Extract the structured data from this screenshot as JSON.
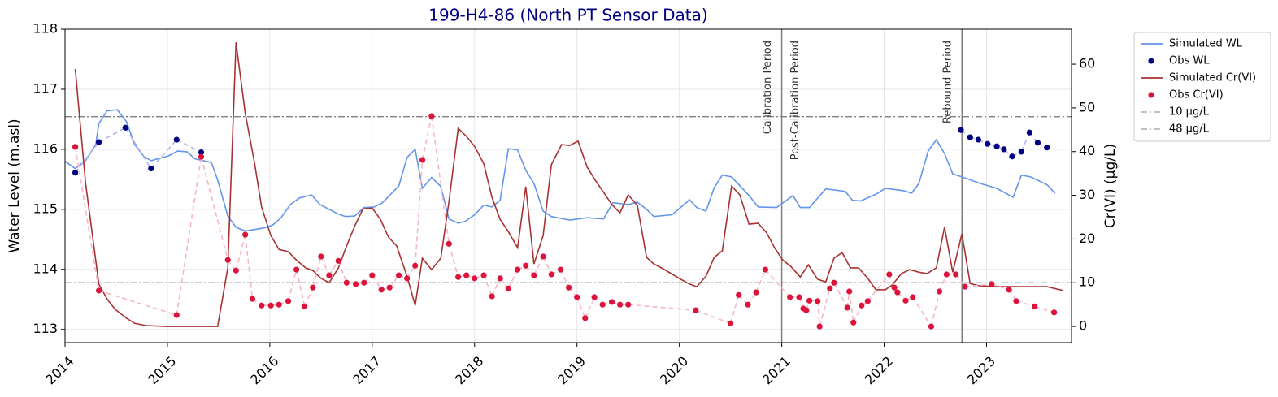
{
  "chart_data": {
    "type": "dual-axis",
    "title": "199-H4-86 (North PT Sensor Data)",
    "y_label": "Water Level (m.asl)",
    "y2_label": "Cr(VI) (µg/L)",
    "xlim": [
      2014,
      2023.83
    ],
    "xticks": [
      2014,
      2015,
      2016,
      2017,
      2018,
      2019,
      2020,
      2021,
      2022,
      2023
    ],
    "ylim": [
      112.78,
      118
    ],
    "yticks": [
      113,
      114,
      115,
      116,
      117,
      118
    ],
    "y2lim": [
      -3.7,
      68
    ],
    "y2ticks": [
      0,
      10,
      20,
      30,
      40,
      50,
      60
    ],
    "grid": true,
    "legend": "outside-right",
    "series": [
      {
        "name": "Simulated WL",
        "type": "line",
        "axis": "y",
        "color": "#6495ed",
        "x": [
          2014.0,
          2014.1,
          2014.2,
          2014.3,
          2014.33,
          2014.41,
          2014.51,
          2014.6,
          2014.68,
          2014.77,
          2014.84,
          2015.01,
          2015.1,
          2015.19,
          2015.27,
          2015.43,
          2015.49,
          2015.59,
          2015.67,
          2015.76,
          2015.94,
          2016.03,
          2016.11,
          2016.2,
          2016.29,
          2016.41,
          2016.49,
          2016.67,
          2016.74,
          2016.83,
          2016.92,
          2017.02,
          2017.1,
          2017.26,
          2017.34,
          2017.42,
          2017.49,
          2017.58,
          2017.67,
          2017.75,
          2017.84,
          2017.91,
          2018.0,
          2018.09,
          2018.17,
          2018.25,
          2018.33,
          2018.42,
          2018.5,
          2018.58,
          2018.67,
          2018.75,
          2018.93,
          2019.1,
          2019.26,
          2019.35,
          2019.5,
          2019.59,
          2019.68,
          2019.75,
          2019.93,
          2020.1,
          2020.17,
          2020.26,
          2020.34,
          2020.42,
          2020.51,
          2020.68,
          2020.77,
          2020.95,
          2021.11,
          2021.18,
          2021.27,
          2021.43,
          2021.62,
          2021.69,
          2021.77,
          2021.93,
          2022.01,
          2022.19,
          2022.27,
          2022.34,
          2022.43,
          2022.51,
          2022.59,
          2022.67,
          2022.76,
          2022.94,
          2023.1,
          2023.26,
          2023.34,
          2023.43,
          2023.59,
          2023.67
        ],
        "values": [
          115.8,
          115.68,
          115.81,
          116.08,
          116.43,
          116.64,
          116.66,
          116.46,
          116.08,
          115.88,
          115.81,
          115.89,
          115.97,
          115.96,
          115.84,
          115.78,
          115.49,
          114.89,
          114.7,
          114.64,
          114.69,
          114.74,
          114.86,
          115.08,
          115.19,
          115.24,
          115.08,
          114.92,
          114.88,
          114.89,
          115.03,
          115.04,
          115.11,
          115.39,
          115.86,
          116.0,
          115.35,
          115.53,
          115.38,
          114.84,
          114.77,
          114.8,
          114.91,
          115.07,
          115.04,
          115.15,
          116.01,
          115.99,
          115.65,
          115.43,
          114.97,
          114.88,
          114.82,
          114.86,
          114.84,
          115.11,
          115.08,
          115.12,
          115.0,
          114.88,
          114.91,
          115.16,
          115.03,
          114.97,
          115.36,
          115.57,
          115.54,
          115.23,
          115.04,
          115.03,
          115.23,
          115.03,
          115.03,
          115.34,
          115.3,
          115.15,
          115.14,
          115.26,
          115.35,
          115.31,
          115.27,
          115.43,
          115.97,
          116.16,
          115.93,
          115.59,
          115.54,
          115.43,
          115.35,
          115.2,
          115.57,
          115.54,
          115.41,
          115.27
        ]
      },
      {
        "name": "Obs WL",
        "type": "scatter",
        "axis": "y",
        "color": "#000080",
        "connector": "#b4b4e6",
        "x": [
          2014.1,
          2014.33,
          2014.59,
          2014.84,
          2015.09,
          2015.33,
          2022.75,
          2022.84,
          2022.92,
          2023.01,
          2023.1,
          2023.17,
          2023.25,
          2023.34,
          2023.42,
          2023.5,
          2023.59
        ],
        "values": [
          115.61,
          116.12,
          116.36,
          115.68,
          116.16,
          115.95,
          116.32,
          116.2,
          116.16,
          116.09,
          116.05,
          116.0,
          115.88,
          115.96,
          116.28,
          116.11,
          116.03
        ]
      },
      {
        "name": "Simulated Cr(VI)",
        "type": "line",
        "axis": "y2",
        "color": "#a83232",
        "x": [
          2014.1,
          2014.2,
          2014.33,
          2014.41,
          2014.49,
          2014.6,
          2014.68,
          2014.79,
          2014.99,
          2015.49,
          2015.59,
          2015.67,
          2015.76,
          2015.85,
          2015.92,
          2016.01,
          2016.09,
          2016.18,
          2016.26,
          2016.35,
          2016.42,
          2016.5,
          2016.58,
          2016.67,
          2016.75,
          2016.83,
          2016.91,
          2017.0,
          2017.08,
          2017.16,
          2017.24,
          2017.34,
          2017.42,
          2017.49,
          2017.58,
          2017.67,
          2017.75,
          2017.84,
          2017.92,
          2018.0,
          2018.09,
          2018.17,
          2018.25,
          2018.33,
          2018.42,
          2018.5,
          2018.58,
          2018.67,
          2018.75,
          2018.85,
          2018.93,
          2019.01,
          2019.1,
          2019.18,
          2019.26,
          2019.34,
          2019.42,
          2019.5,
          2019.59,
          2019.68,
          2019.75,
          2019.84,
          2020.0,
          2020.1,
          2020.17,
          2020.26,
          2020.34,
          2020.42,
          2020.51,
          2020.59,
          2020.68,
          2020.77,
          2020.85,
          2020.93,
          2021.01,
          2021.09,
          2021.18,
          2021.26,
          2021.35,
          2021.43,
          2021.51,
          2021.59,
          2021.67,
          2021.75,
          2021.84,
          2021.92,
          2022.01,
          2022.08,
          2022.17,
          2022.25,
          2022.34,
          2022.42,
          2022.51,
          2022.59,
          2022.67,
          2022.76,
          2022.84,
          2022.93,
          2023.1,
          2023.34,
          2023.43,
          2023.59,
          2023.75
        ],
        "values": [
          58.9,
          32.9,
          9.7,
          6.3,
          3.9,
          1.9,
          0.7,
          0.2,
          0,
          0,
          13.4,
          65.0,
          48.7,
          37.5,
          27.3,
          20.8,
          17.6,
          17.1,
          15.2,
          13.4,
          12.8,
          11.0,
          10.0,
          13.4,
          18.4,
          23.0,
          26.9,
          27.1,
          24.5,
          20.4,
          18.4,
          11.5,
          4.8,
          15.6,
          13.0,
          15.6,
          28.6,
          45.3,
          43.5,
          41.2,
          37.2,
          29.5,
          24.5,
          21.7,
          18.0,
          32.0,
          14.3,
          20.8,
          37.0,
          41.6,
          41.4,
          42.4,
          36.4,
          33.4,
          30.7,
          27.9,
          26.0,
          30.1,
          27.7,
          15.8,
          14.3,
          13.2,
          11.0,
          9.7,
          9.1,
          11.5,
          15.8,
          17.3,
          32.1,
          30.1,
          23.4,
          23.6,
          21.5,
          18.0,
          15.2,
          13.7,
          11.3,
          14.1,
          10.8,
          10.2,
          15.6,
          16.9,
          13.4,
          13.4,
          11.0,
          8.4,
          8.4,
          9.5,
          12.1,
          13.0,
          12.4,
          12.1,
          13.4,
          22.7,
          12.4,
          21.2,
          9.8,
          9.3,
          9.1,
          9.1,
          9.1,
          9.1,
          8.2
        ]
      },
      {
        "name": "Obs Cr(VI)",
        "type": "scatter",
        "axis": "y2",
        "color": "#dc143c",
        "connector": "#f7b6c6",
        "x": [
          2014.1,
          2014.33,
          2015.09,
          2015.33,
          2015.59,
          2015.67,
          2015.76,
          2015.83,
          2015.92,
          2016.01,
          2016.09,
          2016.18,
          2016.26,
          2016.34,
          2016.42,
          2016.5,
          2016.58,
          2016.67,
          2016.75,
          2016.84,
          2016.92,
          2017.0,
          2017.09,
          2017.17,
          2017.26,
          2017.34,
          2017.42,
          2017.49,
          2017.58,
          2017.75,
          2017.84,
          2017.92,
          2018.0,
          2018.09,
          2018.17,
          2018.25,
          2018.33,
          2018.42,
          2018.5,
          2018.58,
          2018.67,
          2018.75,
          2018.84,
          2018.92,
          2019.0,
          2019.08,
          2019.17,
          2019.25,
          2019.34,
          2019.42,
          2019.5,
          2020.16,
          2020.5,
          2020.58,
          2020.67,
          2020.75,
          2020.84,
          2021.08,
          2021.17,
          2021.21,
          2021.24,
          2021.27,
          2021.35,
          2021.37,
          2021.47,
          2021.51,
          2021.64,
          2021.66,
          2021.7,
          2021.78,
          2021.84,
          2022.05,
          2022.1,
          2022.13,
          2022.21,
          2022.28,
          2022.46,
          2022.54,
          2022.61,
          2022.7,
          2022.79,
          2023.05,
          2023.22,
          2023.29,
          2023.47,
          2023.66
        ],
        "values": [
          41.1,
          8.2,
          2.6,
          38.8,
          15.2,
          12.8,
          21.0,
          6.3,
          4.8,
          4.8,
          5.0,
          5.8,
          13.0,
          4.6,
          8.9,
          16.0,
          11.7,
          15.0,
          10.0,
          9.7,
          10.0,
          11.7,
          8.4,
          8.9,
          11.7,
          11.0,
          13.9,
          38.1,
          48.1,
          18.9,
          11.3,
          11.7,
          11.0,
          11.7,
          6.9,
          11.0,
          8.7,
          13.0,
          13.9,
          11.7,
          16.0,
          11.9,
          13.0,
          8.9,
          6.7,
          1.9,
          6.7,
          5.0,
          5.6,
          5.0,
          5.0,
          3.7,
          0.7,
          7.2,
          5.0,
          7.8,
          13.0,
          6.7,
          6.7,
          4.1,
          3.7,
          5.9,
          5.8,
          0,
          8.7,
          10.0,
          4.3,
          8.0,
          0.9,
          4.8,
          5.8,
          11.9,
          8.9,
          7.8,
          5.9,
          6.7,
          0,
          8.0,
          11.9,
          11.9,
          9.1,
          9.7,
          8.4,
          5.8,
          4.6,
          3.2
        ]
      }
    ],
    "reference_lines": [
      {
        "name": "10 µg/L",
        "value": 10,
        "axis": "y2",
        "color": "#808080"
      },
      {
        "name": "48 µg/L",
        "value": 48,
        "axis": "y2",
        "color": "#808080"
      }
    ],
    "vlines": [
      {
        "x": 2021.0,
        "labels": [
          "Calibration Period",
          "Post-Calibration Period"
        ]
      },
      {
        "x": 2022.76,
        "labels": [
          "Rebound Period"
        ]
      }
    ]
  }
}
